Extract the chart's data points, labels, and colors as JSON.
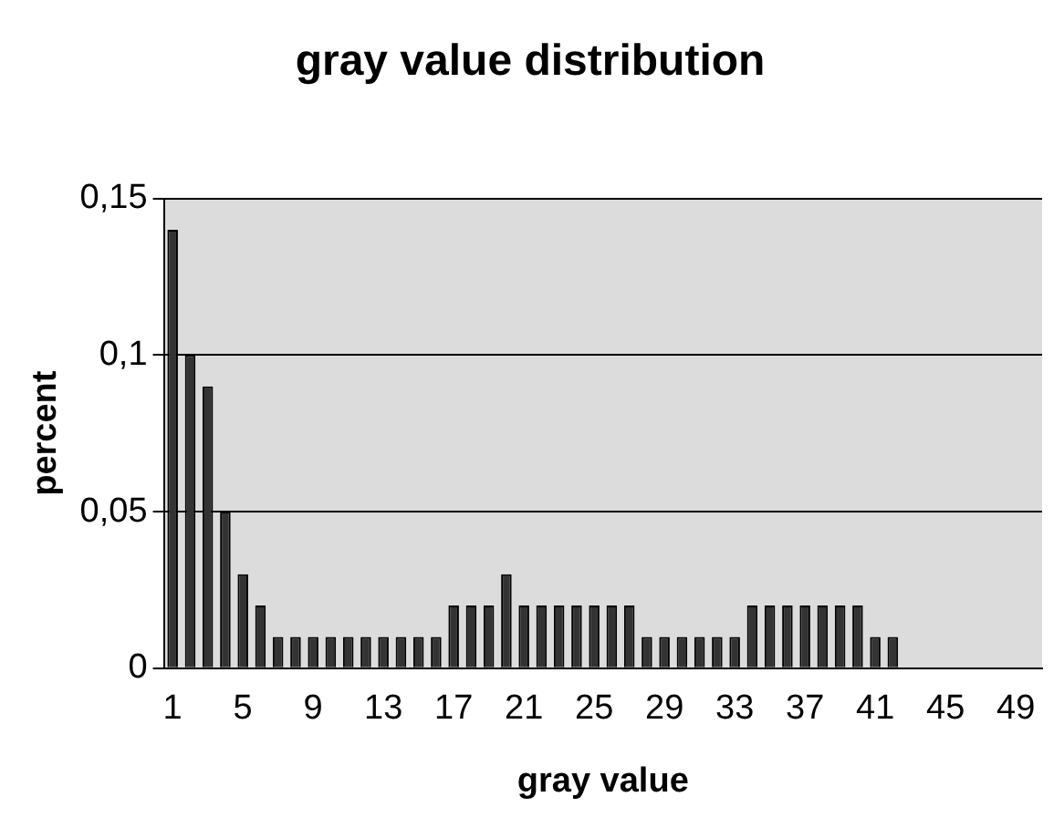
{
  "chart_data": {
    "type": "bar",
    "title": "gray value distribution",
    "xlabel": "gray value",
    "ylabel": "percent",
    "categories": [
      "1",
      null,
      null,
      null,
      "5",
      null,
      null,
      null,
      "9",
      null,
      null,
      null,
      "13",
      null,
      null,
      null,
      "17",
      null,
      null,
      null,
      "21",
      null,
      null,
      null,
      "25",
      null,
      null,
      null,
      "29",
      null,
      null,
      null,
      "33",
      null,
      null,
      null,
      "37",
      null,
      null,
      null,
      "41",
      null,
      null,
      null,
      "45",
      null,
      null,
      null,
      "49",
      null
    ],
    "values": [
      0.14,
      0.1,
      0.09,
      0.05,
      0.03,
      0.02,
      0.01,
      0.01,
      0.01,
      0.01,
      0.01,
      0.01,
      0.01,
      0.01,
      0.01,
      0.01,
      0.02,
      0.02,
      0.02,
      0.03,
      0.02,
      0.02,
      0.02,
      0.02,
      0.02,
      0.02,
      0.02,
      0.01,
      0.01,
      0.01,
      0.01,
      0.01,
      0.01,
      0.02,
      0.02,
      0.02,
      0.02,
      0.02,
      0.02,
      0.02,
      0.01,
      0.01,
      0,
      0,
      0,
      0,
      0,
      0,
      0,
      0
    ],
    "color": "#333333",
    "ylim": [
      0,
      0.15
    ],
    "yticks": [
      {
        "value": 0,
        "label": "0"
      },
      {
        "value": 0.05,
        "label": "0,05"
      },
      {
        "value": 0.1,
        "label": "0,1"
      },
      {
        "value": 0.15,
        "label": "0,15"
      }
    ],
    "grid": "y",
    "legend": false
  }
}
